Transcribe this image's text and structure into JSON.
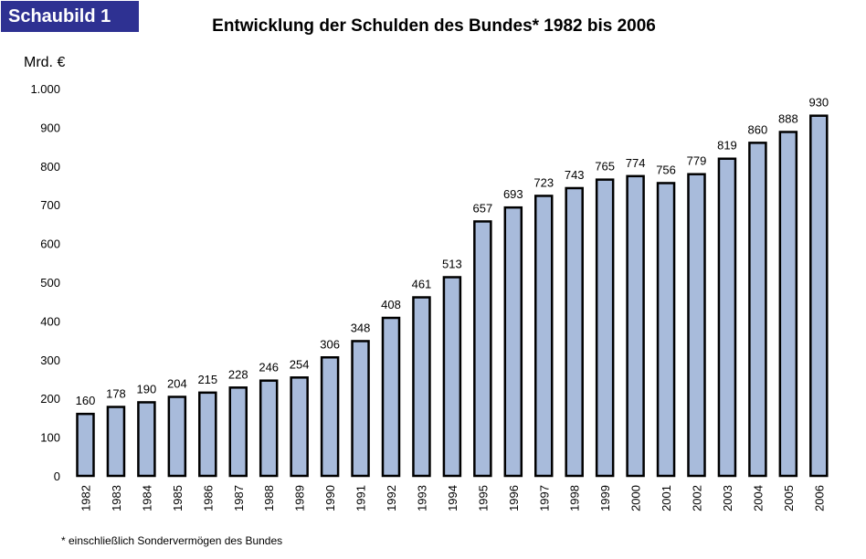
{
  "badge": "Schaubild 1",
  "footnote": "* einschließlich Sondervermögen des Bundes",
  "chart_data": {
    "type": "bar",
    "title": "Entwicklung der Schulden des Bundes* 1982 bis 2006",
    "xlabel": "",
    "ylabel": "Mrd. €",
    "ylim": [
      0,
      1000
    ],
    "yticks": [
      0,
      100,
      200,
      300,
      400,
      500,
      600,
      700,
      800,
      900,
      1000
    ],
    "ytick_labels": [
      "0",
      "100",
      "200",
      "300",
      "400",
      "500",
      "600",
      "700",
      "800",
      "900",
      "1.000"
    ],
    "grid": false,
    "legend": "none",
    "bar_color": "#a8bbdb",
    "bar_edge_color": "#000000",
    "categories": [
      "1982",
      "1983",
      "1984",
      "1985",
      "1986",
      "1987",
      "1988",
      "1989",
      "1990",
      "1991",
      "1992",
      "1993",
      "1994",
      "1995",
      "1996",
      "1997",
      "1998",
      "1999",
      "2000",
      "2001",
      "2002",
      "2003",
      "2004",
      "2005",
      "2006"
    ],
    "values": [
      160,
      178,
      190,
      204,
      215,
      228,
      246,
      254,
      306,
      348,
      408,
      461,
      513,
      657,
      693,
      723,
      743,
      765,
      774,
      756,
      779,
      819,
      860,
      888,
      930
    ]
  }
}
